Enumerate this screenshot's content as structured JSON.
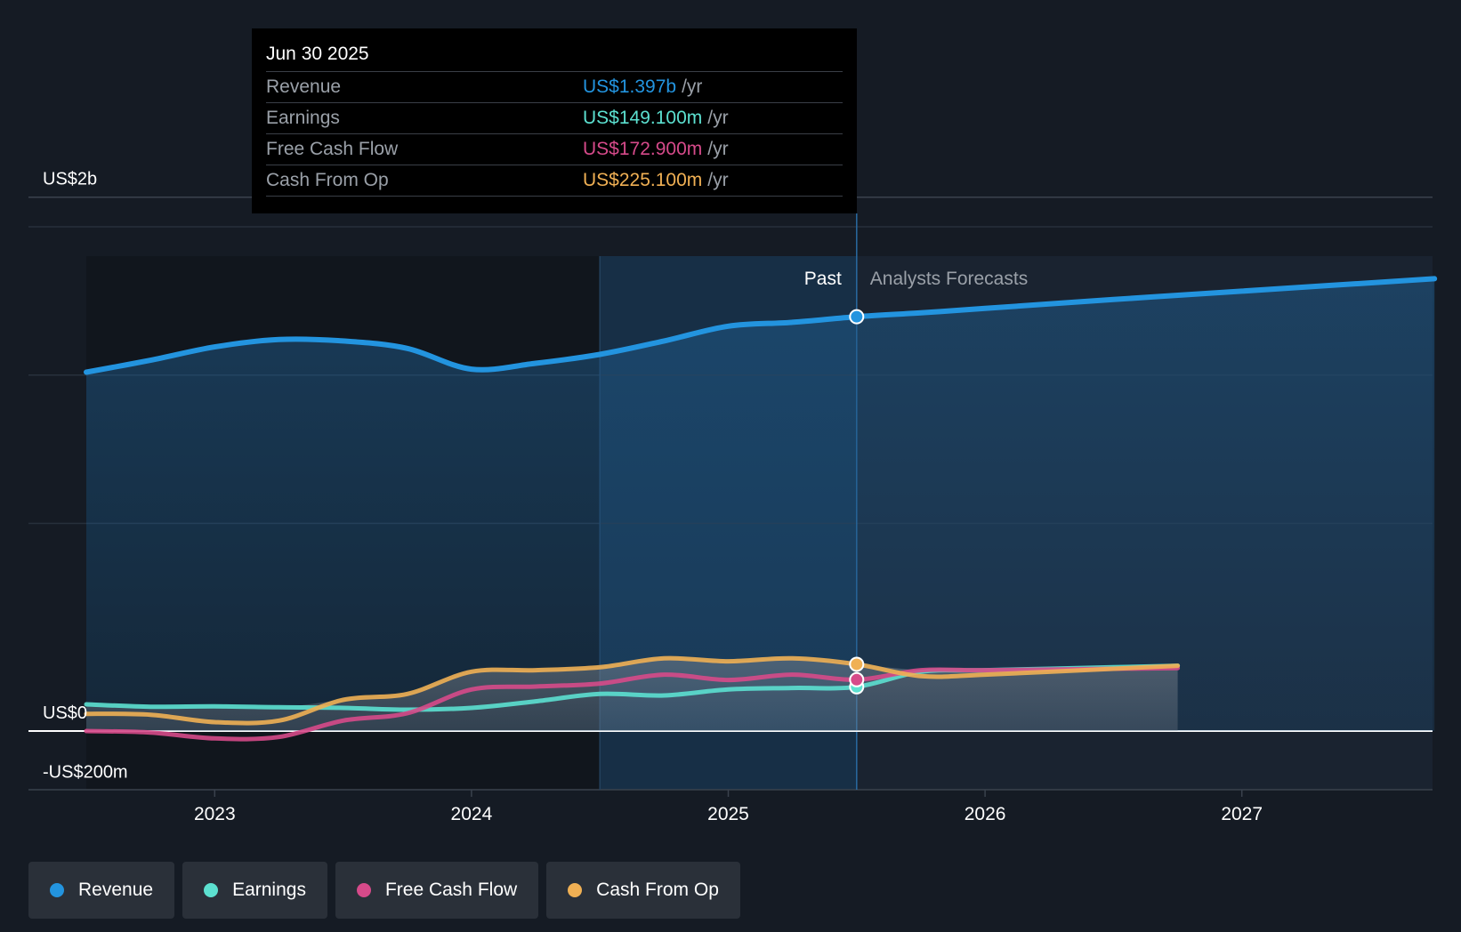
{
  "colors": {
    "background": "#151b24",
    "revenue": "#2394df",
    "earnings": "#5ce0d0",
    "free_cash_flow": "#d64a8a",
    "cash_from_op": "#f0b054",
    "past_region": "#1b4a72"
  },
  "tooltip": {
    "date": "Jun 30 2025",
    "rows": [
      {
        "label": "Revenue",
        "value": "US$1.397b",
        "unit": "/yr"
      },
      {
        "label": "Earnings",
        "value": "US$149.100m",
        "unit": "/yr"
      },
      {
        "label": "Free Cash Flow",
        "value": "US$172.900m",
        "unit": "/yr"
      },
      {
        "label": "Cash From Op",
        "value": "US$225.100m",
        "unit": "/yr"
      }
    ]
  },
  "labels": {
    "past": "Past",
    "forecast": "Analysts Forecasts"
  },
  "legend": [
    {
      "label": "Revenue",
      "color": "#2394df",
      "icon": "revenue-dot-icon"
    },
    {
      "label": "Earnings",
      "color": "#5ce0d0",
      "icon": "earnings-dot-icon"
    },
    {
      "label": "Free Cash Flow",
      "color": "#d64a8a",
      "icon": "free-cash-flow-dot-icon"
    },
    {
      "label": "Cash From Op",
      "color": "#f0b054",
      "icon": "cash-from-op-dot-icon"
    }
  ],
  "chart_data": {
    "type": "line",
    "title": "",
    "xlabel": "",
    "ylabel": "",
    "xlim": [
      2022.5,
      2027.75
    ],
    "ylim": [
      -200,
      1800
    ],
    "y_axis_labels": [
      {
        "value": 1800,
        "text": "US$2b"
      },
      {
        "value": 0,
        "text": "US$0"
      },
      {
        "value": -200,
        "text": "-US$200m"
      }
    ],
    "gridlines": [
      1800,
      1700,
      1200,
      700
    ],
    "x_ticks": [
      {
        "value": 2023,
        "text": "2023"
      },
      {
        "value": 2024,
        "text": "2024"
      },
      {
        "value": 2025,
        "text": "2025"
      },
      {
        "value": 2026,
        "text": "2026"
      },
      {
        "value": 2027,
        "text": "2027"
      }
    ],
    "past_start": 2024.5,
    "forecast_start": 2025.5,
    "highlight_x": 2025.5,
    "series": [
      {
        "name": "Revenue",
        "color": "#2394df",
        "x": [
          2022.5,
          2022.75,
          2023.0,
          2023.25,
          2023.5,
          2023.75,
          2024.0,
          2024.25,
          2024.5,
          2024.75,
          2025.0,
          2025.25,
          2025.5,
          2025.75,
          2026.0,
          2026.5,
          2027.0,
          2027.75
        ],
        "values": [
          1210,
          1250,
          1295,
          1320,
          1315,
          1290,
          1220,
          1240,
          1270,
          1315,
          1365,
          1378,
          1397,
          1410,
          1425,
          1455,
          1483,
          1525
        ]
      },
      {
        "name": "Earnings",
        "color": "#5ce0d0",
        "x": [
          2022.5,
          2022.75,
          2023.0,
          2023.25,
          2023.5,
          2023.75,
          2024.0,
          2024.25,
          2024.5,
          2024.75,
          2025.0,
          2025.25,
          2025.5,
          2025.75,
          2026.0,
          2026.5,
          2026.75
        ],
        "values": [
          90,
          82,
          83,
          80,
          78,
          72,
          78,
          100,
          125,
          120,
          140,
          145,
          149,
          200,
          205,
          215,
          220
        ]
      },
      {
        "name": "Free Cash Flow",
        "color": "#d64a8a",
        "x": [
          2022.5,
          2022.75,
          2023.0,
          2023.25,
          2023.5,
          2023.75,
          2024.0,
          2024.25,
          2024.5,
          2024.75,
          2025.0,
          2025.25,
          2025.5,
          2025.75,
          2026.0,
          2026.5,
          2026.75
        ],
        "values": [
          0,
          -5,
          -25,
          -20,
          35,
          60,
          140,
          150,
          160,
          190,
          172,
          190,
          173,
          205,
          205,
          210,
          212
        ]
      },
      {
        "name": "Cash From Op",
        "color": "#f0b054",
        "x": [
          2022.5,
          2022.75,
          2023.0,
          2023.25,
          2023.5,
          2023.75,
          2024.0,
          2024.25,
          2024.5,
          2024.75,
          2025.0,
          2025.25,
          2025.5,
          2025.75,
          2026.0,
          2026.5,
          2026.75
        ],
        "values": [
          58,
          55,
          30,
          35,
          105,
          125,
          200,
          205,
          215,
          245,
          235,
          245,
          225,
          185,
          190,
          210,
          220
        ]
      }
    ]
  }
}
